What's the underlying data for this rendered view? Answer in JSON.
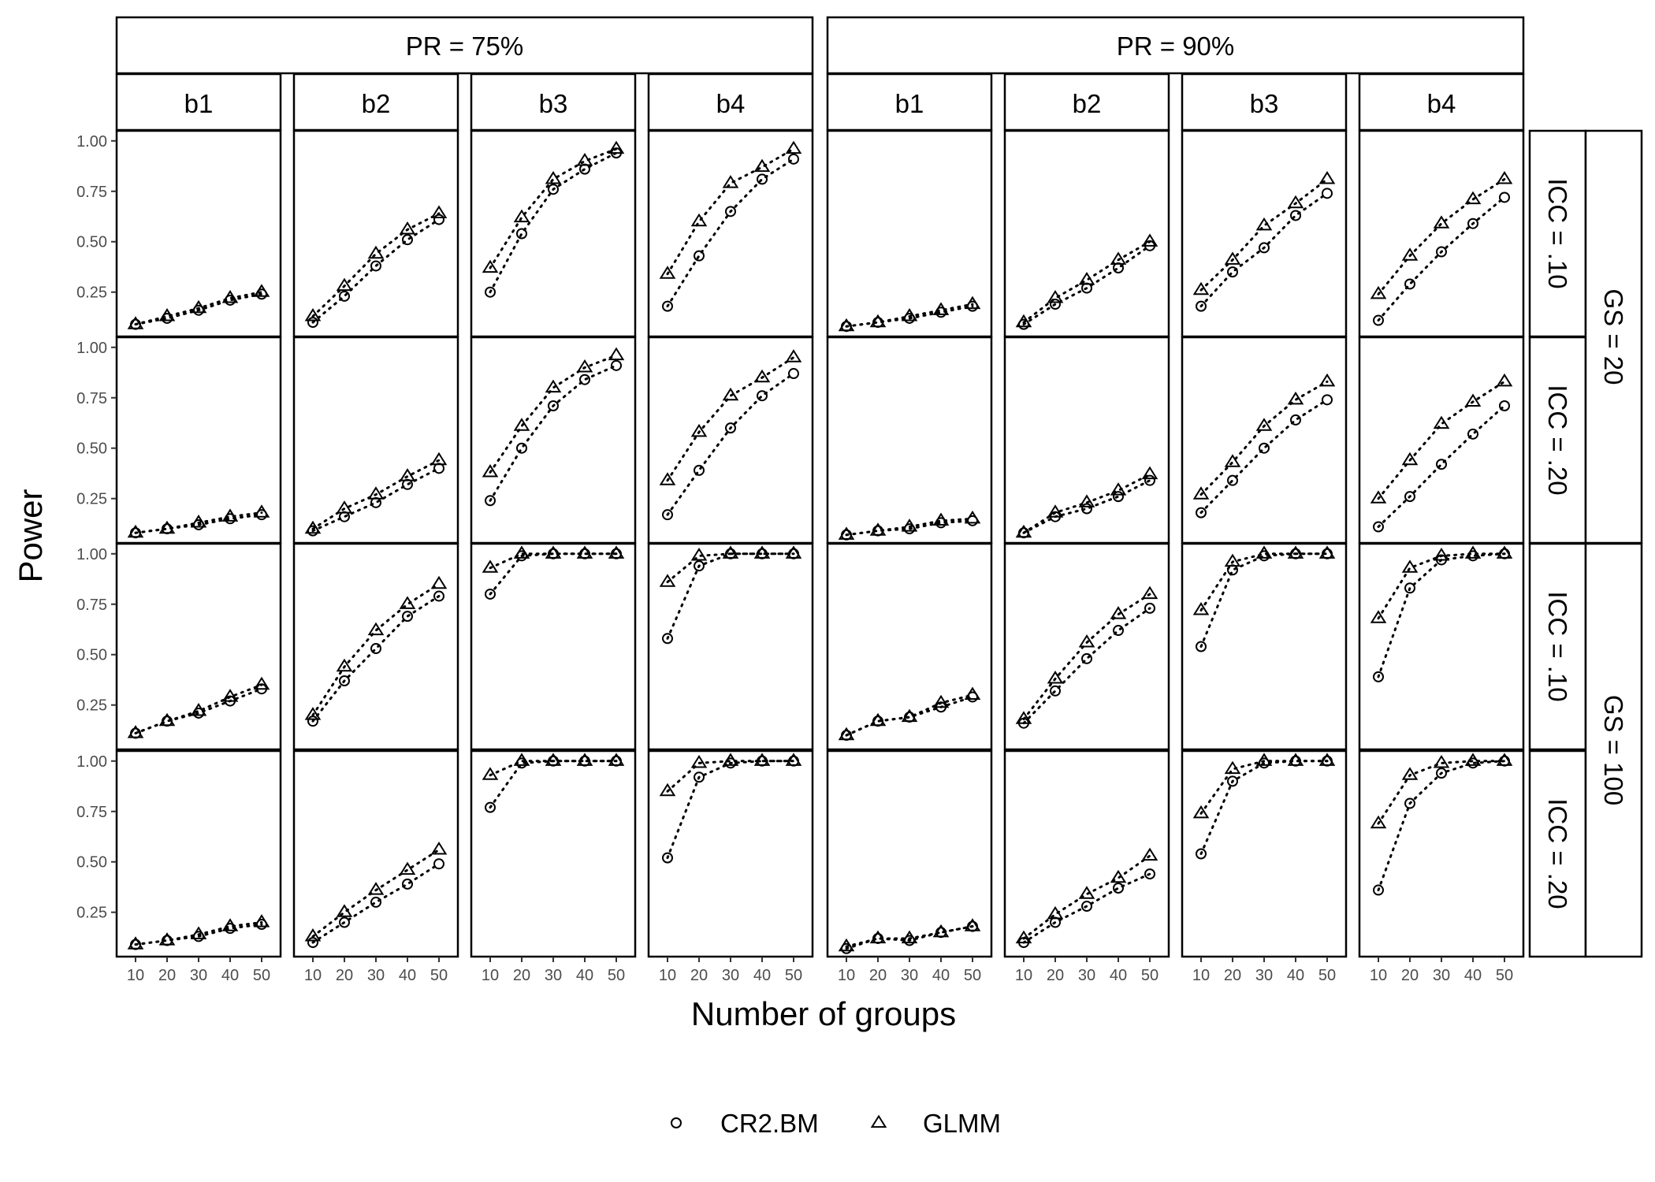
{
  "chart_data": {
    "type": "scatter",
    "xlabel": "Number of groups",
    "ylabel": "Power",
    "x": [
      10,
      20,
      30,
      40,
      50
    ],
    "x_ticks": [
      "10",
      "20",
      "30",
      "40",
      "50"
    ],
    "y_ticks": [
      "0.25",
      "0.50",
      "0.75",
      "1.00"
    ],
    "ylim": [
      0.03,
      1.05
    ],
    "grid": false,
    "legend_position": "bottom",
    "line_style": "dotted",
    "colors": {
      "ink": "#000000",
      "tick_text": "#4d4d4d",
      "background": "#ffffff"
    },
    "series": [
      {
        "name": "CR2.BM",
        "marker": "circle"
      },
      {
        "name": "GLMM",
        "marker": "triangle"
      }
    ],
    "col_groups": [
      {
        "label": "PR = 75%",
        "cols": [
          "b1",
          "b2",
          "b3",
          "b4"
        ]
      },
      {
        "label": "PR = 90%",
        "cols": [
          "b1",
          "b2",
          "b3",
          "b4"
        ]
      }
    ],
    "row_groups": [
      {
        "label": "GS = 20",
        "rows": [
          "ICC = .10",
          "ICC = .20"
        ]
      },
      {
        "label": "GS = 100",
        "rows": [
          "ICC = .10",
          "ICC = .20"
        ]
      }
    ],
    "panels": [
      [
        {
          "CR2.BM": [
            0.09,
            0.12,
            0.16,
            0.21,
            0.24
          ],
          "GLMM": [
            0.09,
            0.13,
            0.17,
            0.22,
            0.25
          ]
        },
        {
          "CR2.BM": [
            0.1,
            0.23,
            0.38,
            0.51,
            0.61
          ],
          "GLMM": [
            0.13,
            0.28,
            0.44,
            0.56,
            0.64
          ]
        },
        {
          "CR2.BM": [
            0.25,
            0.54,
            0.76,
            0.86,
            0.94
          ],
          "GLMM": [
            0.37,
            0.62,
            0.81,
            0.9,
            0.96
          ]
        },
        {
          "CR2.BM": [
            0.18,
            0.43,
            0.65,
            0.81,
            0.91
          ],
          "GLMM": [
            0.34,
            0.6,
            0.79,
            0.87,
            0.96
          ]
        },
        {
          "CR2.BM": [
            0.08,
            0.1,
            0.12,
            0.15,
            0.18
          ],
          "GLMM": [
            0.08,
            0.1,
            0.13,
            0.16,
            0.19
          ]
        },
        {
          "CR2.BM": [
            0.09,
            0.19,
            0.27,
            0.37,
            0.48
          ],
          "GLMM": [
            0.1,
            0.22,
            0.31,
            0.41,
            0.5
          ]
        },
        {
          "CR2.BM": [
            0.18,
            0.35,
            0.47,
            0.63,
            0.74
          ],
          "GLMM": [
            0.26,
            0.41,
            0.58,
            0.69,
            0.81
          ]
        },
        {
          "CR2.BM": [
            0.11,
            0.29,
            0.45,
            0.59,
            0.72
          ],
          "GLMM": [
            0.24,
            0.43,
            0.59,
            0.71,
            0.81
          ]
        }
      ],
      [
        {
          "CR2.BM": [
            0.08,
            0.1,
            0.12,
            0.15,
            0.17
          ],
          "GLMM": [
            0.08,
            0.1,
            0.13,
            0.16,
            0.18
          ]
        },
        {
          "CR2.BM": [
            0.09,
            0.16,
            0.23,
            0.32,
            0.4
          ],
          "GLMM": [
            0.1,
            0.2,
            0.27,
            0.36,
            0.44
          ]
        },
        {
          "CR2.BM": [
            0.24,
            0.5,
            0.71,
            0.84,
            0.91
          ],
          "GLMM": [
            0.38,
            0.61,
            0.8,
            0.9,
            0.96
          ]
        },
        {
          "CR2.BM": [
            0.17,
            0.39,
            0.6,
            0.76,
            0.87
          ],
          "GLMM": [
            0.34,
            0.58,
            0.76,
            0.85,
            0.95
          ]
        },
        {
          "CR2.BM": [
            0.07,
            0.09,
            0.1,
            0.13,
            0.14
          ],
          "GLMM": [
            0.07,
            0.09,
            0.11,
            0.14,
            0.15
          ]
        },
        {
          "CR2.BM": [
            0.08,
            0.16,
            0.2,
            0.26,
            0.34
          ],
          "GLMM": [
            0.08,
            0.18,
            0.23,
            0.29,
            0.37
          ]
        },
        {
          "CR2.BM": [
            0.18,
            0.34,
            0.5,
            0.64,
            0.74
          ],
          "GLMM": [
            0.27,
            0.43,
            0.61,
            0.74,
            0.83
          ]
        },
        {
          "CR2.BM": [
            0.11,
            0.26,
            0.42,
            0.57,
            0.71
          ],
          "GLMM": [
            0.25,
            0.44,
            0.62,
            0.73,
            0.83
          ]
        }
      ],
      [
        {
          "CR2.BM": [
            0.11,
            0.17,
            0.21,
            0.27,
            0.33
          ],
          "GLMM": [
            0.11,
            0.17,
            0.22,
            0.29,
            0.35
          ]
        },
        {
          "CR2.BM": [
            0.17,
            0.37,
            0.53,
            0.69,
            0.79
          ],
          "GLMM": [
            0.2,
            0.44,
            0.62,
            0.75,
            0.85
          ]
        },
        {
          "CR2.BM": [
            0.8,
            0.99,
            1.0,
            1.0,
            1.0
          ],
          "GLMM": [
            0.93,
            1.0,
            1.0,
            1.0,
            1.0
          ]
        },
        {
          "CR2.BM": [
            0.58,
            0.94,
            1.0,
            1.0,
            1.0
          ],
          "GLMM": [
            0.86,
            0.99,
            1.0,
            1.0,
            1.0
          ]
        },
        {
          "CR2.BM": [
            0.1,
            0.17,
            0.19,
            0.24,
            0.29
          ],
          "GLMM": [
            0.1,
            0.17,
            0.19,
            0.26,
            0.3
          ]
        },
        {
          "CR2.BM": [
            0.16,
            0.32,
            0.48,
            0.62,
            0.73
          ],
          "GLMM": [
            0.18,
            0.38,
            0.56,
            0.7,
            0.8
          ]
        },
        {
          "CR2.BM": [
            0.54,
            0.92,
            0.99,
            1.0,
            1.0
          ],
          "GLMM": [
            0.72,
            0.96,
            1.0,
            1.0,
            1.0
          ]
        },
        {
          "CR2.BM": [
            0.39,
            0.83,
            0.97,
            0.99,
            1.0
          ],
          "GLMM": [
            0.68,
            0.93,
            0.99,
            1.0,
            1.0
          ]
        }
      ],
      [
        {
          "CR2.BM": [
            0.09,
            0.11,
            0.13,
            0.17,
            0.19
          ],
          "GLMM": [
            0.09,
            0.11,
            0.14,
            0.18,
            0.2
          ]
        },
        {
          "CR2.BM": [
            0.1,
            0.2,
            0.3,
            0.39,
            0.49
          ],
          "GLMM": [
            0.13,
            0.25,
            0.36,
            0.46,
            0.56
          ]
        },
        {
          "CR2.BM": [
            0.77,
            0.99,
            1.0,
            1.0,
            1.0
          ],
          "GLMM": [
            0.93,
            1.0,
            1.0,
            1.0,
            1.0
          ]
        },
        {
          "CR2.BM": [
            0.52,
            0.92,
            0.99,
            1.0,
            1.0
          ],
          "GLMM": [
            0.85,
            0.99,
            1.0,
            1.0,
            1.0
          ]
        },
        {
          "CR2.BM": [
            0.07,
            0.12,
            0.11,
            0.15,
            0.18
          ],
          "GLMM": [
            0.08,
            0.12,
            0.12,
            0.15,
            0.18
          ]
        },
        {
          "CR2.BM": [
            0.1,
            0.2,
            0.28,
            0.37,
            0.44
          ],
          "GLMM": [
            0.12,
            0.24,
            0.34,
            0.42,
            0.53
          ]
        },
        {
          "CR2.BM": [
            0.54,
            0.9,
            0.99,
            1.0,
            1.0
          ],
          "GLMM": [
            0.74,
            0.96,
            1.0,
            1.0,
            1.0
          ]
        },
        {
          "CR2.BM": [
            0.36,
            0.79,
            0.94,
            0.99,
            1.0
          ],
          "GLMM": [
            0.69,
            0.93,
            0.99,
            1.0,
            1.0
          ]
        }
      ]
    ]
  }
}
